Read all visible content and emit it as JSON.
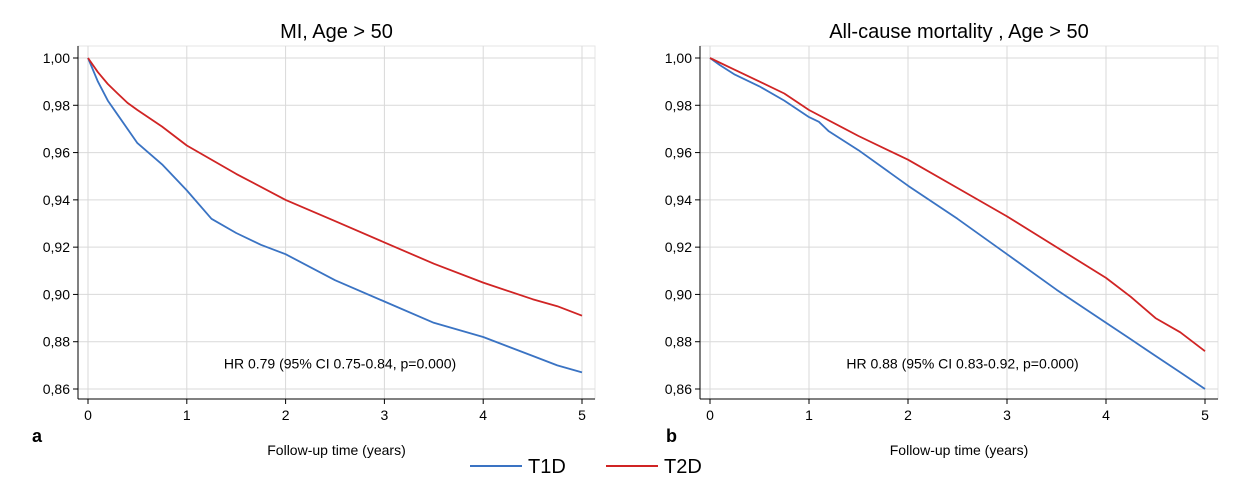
{
  "colors": {
    "t1d": "#3a73c3",
    "t2d": "#d02424",
    "grid": "#d9d9d9",
    "axis": "#000000"
  },
  "legend": [
    {
      "label": "T1D",
      "color": "#3a73c3"
    },
    {
      "label": "T2D",
      "color": "#d02424"
    }
  ],
  "chart_data": [
    {
      "type": "line",
      "panel_label": "a",
      "title": "MI, Age > 50",
      "xlabel": "Follow-up time (years)",
      "ylabel": "",
      "xlim": [
        0,
        5
      ],
      "ylim": [
        0.86,
        1.0
      ],
      "xticks": [
        0,
        1,
        2,
        3,
        4,
        5
      ],
      "yticks": [
        0.86,
        0.88,
        0.9,
        0.92,
        0.94,
        0.96,
        0.98,
        1.0
      ],
      "ytick_labels": [
        "0,86",
        "0,88",
        "0,90",
        "0,92",
        "0,94",
        "0,96",
        "0,98",
        "1,00"
      ],
      "xtick_labels": [
        "0",
        "1",
        "2",
        "3",
        "4",
        "5"
      ],
      "grid": true,
      "annotation": "HR 0.79 (95% CI 0.75-0.84, p=0.000)",
      "series": [
        {
          "name": "T1D",
          "color": "#3a73c3",
          "x": [
            0,
            0.1,
            0.2,
            0.3,
            0.5,
            0.75,
            1.0,
            1.25,
            1.5,
            1.75,
            2.0,
            2.5,
            3.0,
            3.5,
            4.0,
            4.5,
            4.75,
            5.0
          ],
          "y": [
            1.0,
            0.99,
            0.982,
            0.976,
            0.964,
            0.955,
            0.944,
            0.932,
            0.926,
            0.921,
            0.917,
            0.906,
            0.897,
            0.888,
            0.882,
            0.874,
            0.87,
            0.867
          ]
        },
        {
          "name": "T2D",
          "color": "#d02424",
          "x": [
            0,
            0.1,
            0.2,
            0.3,
            0.4,
            0.5,
            0.75,
            1.0,
            1.5,
            2.0,
            2.5,
            3.0,
            3.5,
            4.0,
            4.5,
            4.75,
            5.0
          ],
          "y": [
            1.0,
            0.994,
            0.989,
            0.985,
            0.981,
            0.978,
            0.971,
            0.963,
            0.951,
            0.94,
            0.931,
            0.922,
            0.913,
            0.905,
            0.898,
            0.895,
            0.891
          ]
        }
      ]
    },
    {
      "type": "line",
      "panel_label": "b",
      "title": "All-cause mortality , Age > 50",
      "xlabel": "Follow-up time (years)",
      "ylabel": "",
      "xlim": [
        0,
        5
      ],
      "ylim": [
        0.86,
        1.0
      ],
      "xticks": [
        0,
        1,
        2,
        3,
        4,
        5
      ],
      "yticks": [
        0.86,
        0.88,
        0.9,
        0.92,
        0.94,
        0.96,
        0.98,
        1.0
      ],
      "ytick_labels": [
        "0,86",
        "0,88",
        "0,90",
        "0,92",
        "0,94",
        "0,96",
        "0,98",
        "1,00"
      ],
      "xtick_labels": [
        "0",
        "1",
        "2",
        "3",
        "4",
        "5"
      ],
      "grid": true,
      "annotation": "HR 0.88 (95% CI 0.83-0.92, p=0.000)",
      "series": [
        {
          "name": "T1D",
          "color": "#3a73c3",
          "x": [
            0,
            0.1,
            0.25,
            0.5,
            0.75,
            1.0,
            1.1,
            1.2,
            1.5,
            2.0,
            2.5,
            3.0,
            3.5,
            4.0,
            4.25,
            4.5,
            4.75,
            5.0
          ],
          "y": [
            1.0,
            0.997,
            0.993,
            0.988,
            0.982,
            0.975,
            0.973,
            0.969,
            0.961,
            0.946,
            0.932,
            0.917,
            0.902,
            0.888,
            0.881,
            0.874,
            0.867,
            0.86
          ]
        },
        {
          "name": "T2D",
          "color": "#d02424",
          "x": [
            0,
            0.25,
            0.5,
            0.75,
            1.0,
            1.5,
            2.0,
            2.5,
            3.0,
            3.5,
            4.0,
            4.25,
            4.5,
            4.75,
            5.0
          ],
          "y": [
            1.0,
            0.995,
            0.99,
            0.985,
            0.978,
            0.967,
            0.957,
            0.945,
            0.933,
            0.92,
            0.907,
            0.899,
            0.89,
            0.884,
            0.876
          ]
        }
      ]
    }
  ]
}
